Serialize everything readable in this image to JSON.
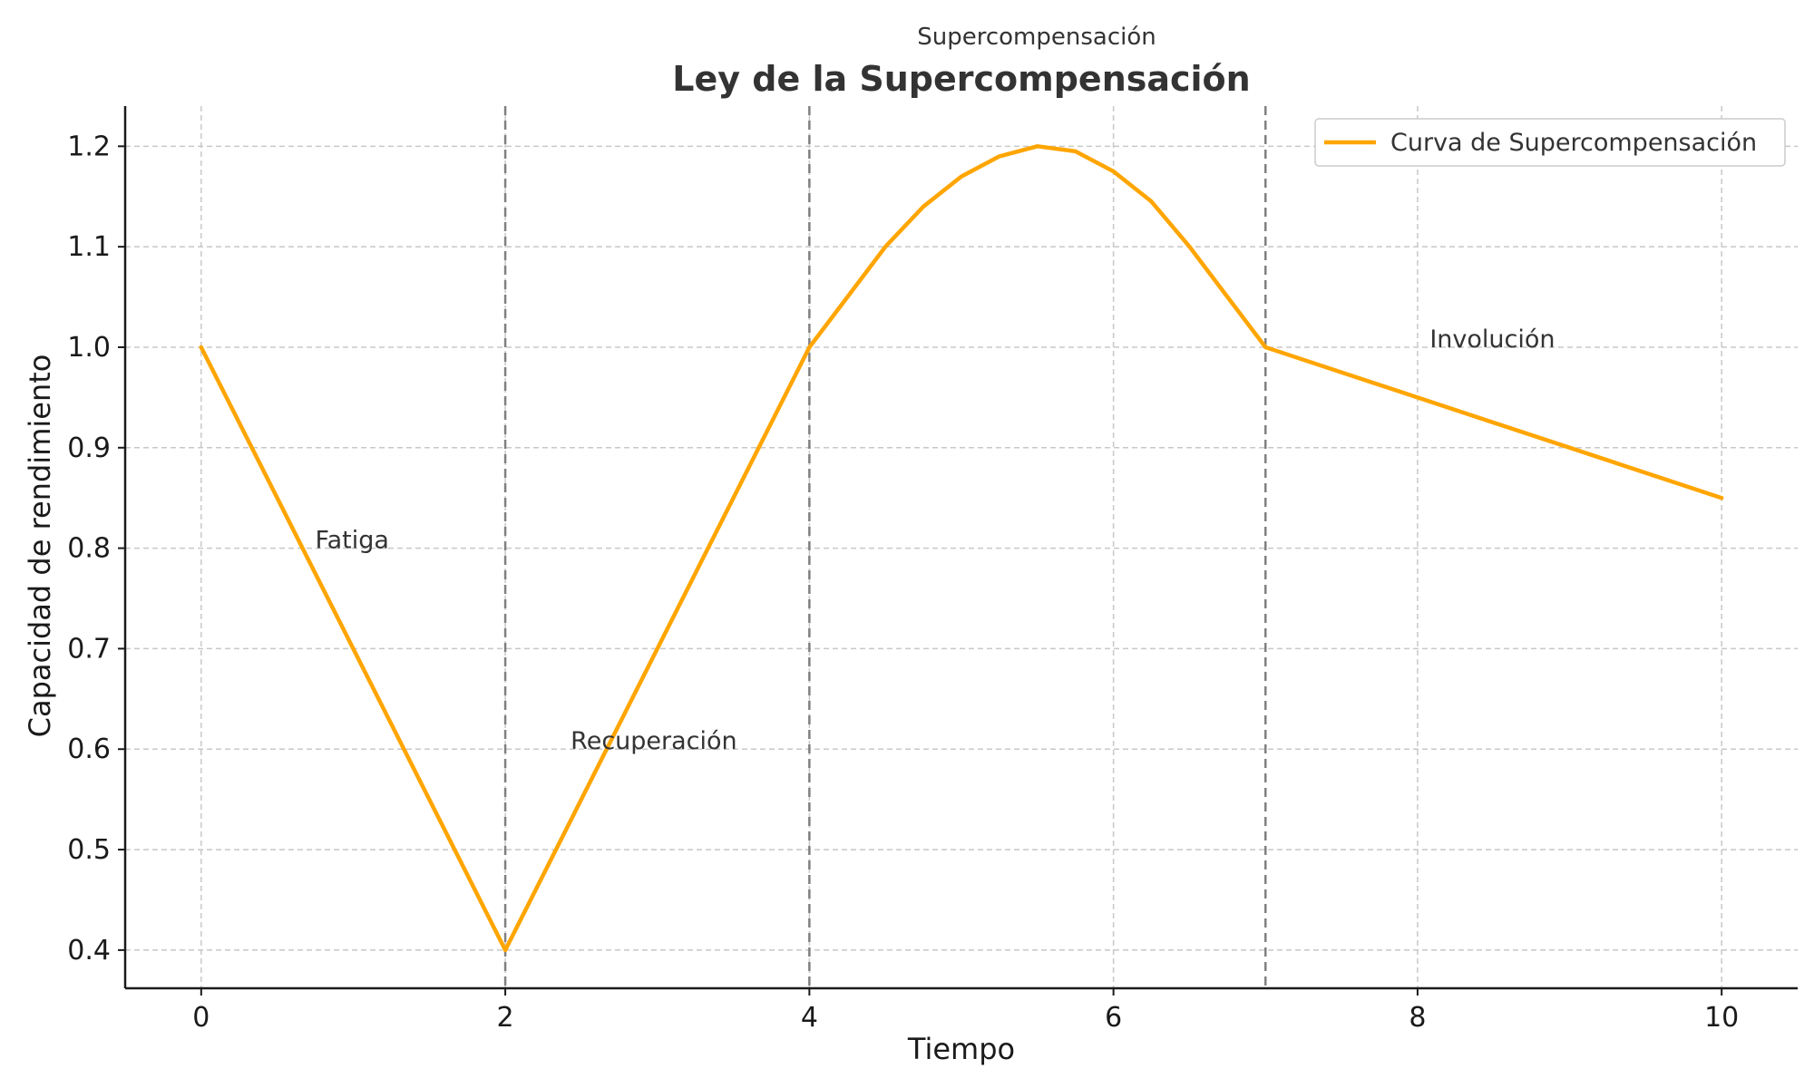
{
  "chart_data": {
    "type": "line",
    "suptitle": "Supercompensación",
    "title": "Ley de la Supercompensación",
    "xlabel": "Tiempo",
    "ylabel": "Capacidad de rendimiento",
    "xlim": [
      -0.5,
      10.5
    ],
    "ylim": [
      0.362,
      1.24
    ],
    "xticks": [
      0,
      2,
      4,
      6,
      8,
      10
    ],
    "yticks": [
      0.4,
      0.5,
      0.6,
      0.7,
      0.8,
      0.9,
      1.0,
      1.1,
      1.2
    ],
    "grid": true,
    "legend_position": "top-right",
    "series": [
      {
        "name": "Curva de Supercompensación",
        "color": "#ffa500",
        "x": [
          0,
          2,
          4,
          4.25,
          4.5,
          4.75,
          5.0,
          5.25,
          5.5,
          5.75,
          6.0,
          6.25,
          6.5,
          6.75,
          7,
          10
        ],
        "y": [
          1.0,
          0.4,
          1.0,
          1.05,
          1.1,
          1.14,
          1.17,
          1.19,
          1.2,
          1.195,
          1.175,
          1.145,
          1.1,
          1.05,
          1.0,
          0.85
        ]
      }
    ],
    "vlines": [
      {
        "x": 2,
        "color": "#808080",
        "style": "dashed"
      },
      {
        "x": 4,
        "color": "#808080",
        "style": "dashed"
      },
      {
        "x": 7,
        "color": "#808080",
        "style": "dashed"
      }
    ],
    "annotations": [
      {
        "text": "Fatiga",
        "x": 0.75,
        "y": 0.8
      },
      {
        "text": "Recuperación",
        "x": 2.43,
        "y": 0.6
      },
      {
        "text": "Involución",
        "x": 8.08,
        "y": 1.0
      }
    ]
  }
}
